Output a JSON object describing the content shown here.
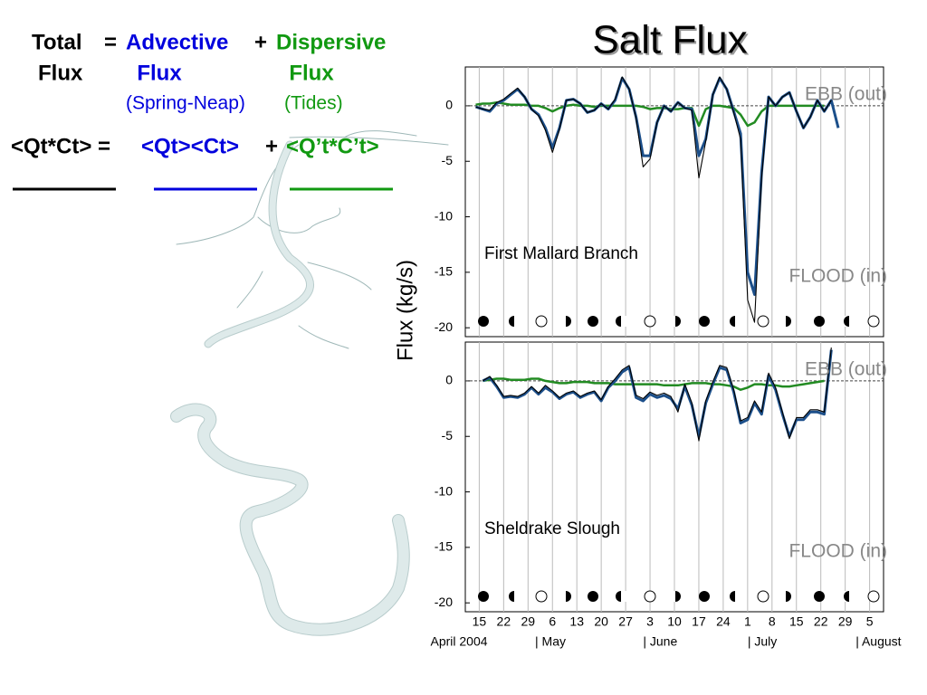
{
  "slide": {
    "title": "Salt Flux",
    "equation": {
      "lhs": {
        "line1": "Total",
        "line2": "Flux"
      },
      "equals": "=",
      "advective": {
        "line1": "Advective",
        "line2": "Flux",
        "note": "(Spring-Neap)"
      },
      "plus": "+",
      "dispersive": {
        "line1": "Dispersive",
        "line2": "Flux",
        "note": "(Tides)"
      },
      "averages": {
        "total": "<Qt*Ct> =",
        "advective": "<Qt><Ct>",
        "plus": "+",
        "dispersive": "<Q’t*C’t>"
      }
    }
  },
  "chart_data": [
    {
      "type": "line",
      "title": "First Mallard Branch",
      "ylabel": "Flux (kg/s)",
      "annotations": [
        "EBB (out)",
        "FLOOD (in)"
      ],
      "grid": true,
      "xlim": [
        "2004-04-11",
        "2004-08-09"
      ],
      "ylim": [
        -20.8,
        3.5
      ],
      "yticks": [
        0,
        -5,
        -10,
        -15,
        -20
      ],
      "x": [
        "2004-04-14",
        "2004-04-16",
        "2004-04-18",
        "2004-04-20",
        "2004-04-22",
        "2004-04-24",
        "2004-04-26",
        "2004-04-28",
        "2004-04-30",
        "2004-05-02",
        "2004-05-04",
        "2004-05-06",
        "2004-05-08",
        "2004-05-10",
        "2004-05-12",
        "2004-05-14",
        "2004-05-16",
        "2004-05-18",
        "2004-05-20",
        "2004-05-22",
        "2004-05-24",
        "2004-05-26",
        "2004-05-28",
        "2004-05-30",
        "2004-06-01",
        "2004-06-03",
        "2004-06-05",
        "2004-06-07",
        "2004-06-09",
        "2004-06-11",
        "2004-06-13",
        "2004-06-15",
        "2004-06-17",
        "2004-06-19",
        "2004-06-21",
        "2004-06-23",
        "2004-06-25",
        "2004-06-27",
        "2004-06-29",
        "2004-07-01",
        "2004-07-03",
        "2004-07-05",
        "2004-07-07",
        "2004-07-09",
        "2004-07-11",
        "2004-07-13",
        "2004-07-15",
        "2004-07-17",
        "2004-07-19",
        "2004-07-21",
        "2004-07-23",
        "2004-07-25",
        "2004-07-27"
      ],
      "series": [
        {
          "color": "#228b22",
          "values": [
            0.1,
            0.2,
            0.2,
            0.3,
            0.2,
            0.1,
            0.1,
            0.1,
            0,
            0,
            -0.2,
            -0.5,
            -0.2,
            0,
            0.1,
            0,
            0,
            -0.1,
            0,
            0,
            0,
            0,
            0,
            0,
            -0.1,
            -0.3,
            -0.2,
            -0.2,
            -0.3,
            -0.3,
            -0.2,
            -0.2,
            -1.8,
            -0.3,
            0,
            0,
            -0.1,
            -0.2,
            -0.8,
            -1.8,
            -1.5,
            -0.5,
            0,
            0,
            0,
            0,
            0,
            0,
            0,
            0,
            0,
            null,
            null
          ]
        },
        {
          "color": "#1c4f8a",
          "values": [
            -0.1,
            -0.3,
            -0.5,
            0.2,
            0.5,
            1.0,
            1.5,
            0.8,
            -0.3,
            -0.8,
            -2.0,
            -3.8,
            -2.0,
            0.5,
            0.6,
            0.2,
            -0.6,
            -0.4,
            0.2,
            -0.3,
            0.5,
            2.5,
            1.5,
            -1.0,
            -4.5,
            -4.5,
            -1.5,
            0.0,
            -0.5,
            0.3,
            -0.2,
            -0.3,
            -4.5,
            -3.0,
            1.0,
            2.5,
            1.5,
            -0.5,
            -2.5,
            -15.0,
            -17.0,
            -6.0,
            0.8,
            0.0,
            0.8,
            1.2,
            -0.5,
            -2.0,
            -1.0,
            0.5,
            -0.5,
            0.5,
            -2.0
          ]
        },
        {
          "color": "#000000",
          "values": [
            -0.1,
            -0.3,
            -0.4,
            0.3,
            0.6,
            1.1,
            1.6,
            0.8,
            -0.3,
            -0.9,
            -2.2,
            -4.2,
            -2.1,
            0.5,
            0.6,
            0.2,
            -0.6,
            -0.4,
            0.2,
            -0.3,
            0.6,
            2.6,
            1.5,
            -1.1,
            -5.5,
            -4.8,
            -1.5,
            0.0,
            -0.5,
            0.3,
            -0.2,
            -0.4,
            -6.5,
            -3.2,
            1.0,
            2.6,
            1.5,
            -0.6,
            -3.0,
            -17.5,
            -19.5,
            -6.5,
            0.8,
            0.0,
            0.8,
            1.2,
            -0.5,
            -2.0,
            -1.0,
            0.5,
            -0.5,
            0.5,
            null
          ]
        }
      ]
    },
    {
      "type": "line",
      "title": "Sheldrake Slough",
      "annotations": [
        "EBB (out)",
        "FLOOD (in)"
      ],
      "grid": true,
      "xlim": [
        "2004-04-11",
        "2004-08-09"
      ],
      "ylim": [
        -20.8,
        3.5
      ],
      "yticks": [
        0,
        -5,
        -10,
        -15,
        -20
      ],
      "xticks": [
        {
          "value": "2004-04-15",
          "label": "15"
        },
        {
          "value": "2004-04-22",
          "label": "22"
        },
        {
          "value": "2004-04-29",
          "label": "29"
        },
        {
          "value": "2004-05-06",
          "label": "6"
        },
        {
          "value": "2004-05-13",
          "label": "13"
        },
        {
          "value": "2004-05-20",
          "label": "20"
        },
        {
          "value": "2004-05-27",
          "label": "27"
        },
        {
          "value": "2004-06-03",
          "label": "3"
        },
        {
          "value": "2004-06-10",
          "label": "10"
        },
        {
          "value": "2004-06-17",
          "label": "17"
        },
        {
          "value": "2004-06-24",
          "label": "24"
        },
        {
          "value": "2004-07-01",
          "label": "1"
        },
        {
          "value": "2004-07-08",
          "label": "8"
        },
        {
          "value": "2004-07-15",
          "label": "15"
        },
        {
          "value": "2004-07-22",
          "label": "22"
        },
        {
          "value": "2004-07-29",
          "label": "29"
        },
        {
          "value": "2004-08-05",
          "label": "5"
        }
      ],
      "month_labels": [
        {
          "value": "2004-04-01",
          "label": "April 2004"
        },
        {
          "value": "2004-05-01",
          "label": "| May"
        },
        {
          "value": "2004-06-01",
          "label": "| June"
        },
        {
          "value": "2004-07-01",
          "label": "| July"
        },
        {
          "value": "2004-08-01",
          "label": "| August"
        }
      ],
      "x": [
        "2004-04-14",
        "2004-04-16",
        "2004-04-18",
        "2004-04-20",
        "2004-04-22",
        "2004-04-24",
        "2004-04-26",
        "2004-04-28",
        "2004-04-30",
        "2004-05-02",
        "2004-05-04",
        "2004-05-06",
        "2004-05-08",
        "2004-05-10",
        "2004-05-12",
        "2004-05-14",
        "2004-05-16",
        "2004-05-18",
        "2004-05-20",
        "2004-05-22",
        "2004-05-24",
        "2004-05-26",
        "2004-05-28",
        "2004-05-30",
        "2004-06-01",
        "2004-06-03",
        "2004-06-05",
        "2004-06-07",
        "2004-06-09",
        "2004-06-11",
        "2004-06-13",
        "2004-06-15",
        "2004-06-17",
        "2004-06-19",
        "2004-06-21",
        "2004-06-23",
        "2004-06-25",
        "2004-06-27",
        "2004-06-29",
        "2004-07-01",
        "2004-07-03",
        "2004-07-05",
        "2004-07-07",
        "2004-07-09",
        "2004-07-11",
        "2004-07-13",
        "2004-07-15",
        "2004-07-17",
        "2004-07-19",
        "2004-07-21",
        "2004-07-23",
        "2004-07-25",
        "2004-07-27"
      ],
      "series": [
        {
          "color": "#228b22",
          "values": [
            null,
            0,
            0.1,
            0.2,
            0.2,
            0.1,
            0.1,
            0.1,
            0.2,
            0.2,
            0,
            -0.1,
            -0.2,
            -0.2,
            -0.1,
            -0.1,
            -0.1,
            -0.2,
            -0.2,
            -0.2,
            -0.3,
            -0.3,
            -0.3,
            -0.3,
            -0.3,
            -0.3,
            -0.3,
            -0.4,
            -0.4,
            -0.4,
            -0.3,
            -0.2,
            -0.2,
            -0.2,
            -0.3,
            -0.3,
            -0.4,
            -0.5,
            -0.8,
            -0.6,
            -0.3,
            -0.3,
            -0.4,
            -0.4,
            -0.5,
            -0.5,
            -0.4,
            -0.3,
            -0.2,
            -0.1,
            0,
            null,
            null
          ]
        },
        {
          "color": "#1c4f8a",
          "values": [
            null,
            0.0,
            0.3,
            -0.5,
            -1.5,
            -1.4,
            -1.5,
            -1.2,
            -0.6,
            -1.2,
            -0.6,
            -1.0,
            -1.6,
            -1.2,
            -1.0,
            -1.5,
            -1.2,
            -1.0,
            -1.8,
            -0.6,
            0.0,
            0.8,
            1.2,
            -1.5,
            -1.8,
            -1.2,
            -1.5,
            -1.3,
            -1.6,
            -2.5,
            -0.5,
            -2.2,
            -5.0,
            -2.0,
            -0.3,
            1.2,
            1.0,
            -1.0,
            -3.8,
            -3.5,
            -2.0,
            -3.0,
            0.5,
            -0.8,
            -3.0,
            -5.0,
            -3.5,
            -3.5,
            -2.8,
            -2.8,
            -3.0,
            2.8,
            null
          ]
        },
        {
          "color": "#000000",
          "values": [
            null,
            0.0,
            0.4,
            -0.4,
            -1.4,
            -1.3,
            -1.4,
            -1.1,
            -0.5,
            -1.1,
            -0.4,
            -0.9,
            -1.5,
            -1.1,
            -0.9,
            -1.4,
            -1.1,
            -0.9,
            -1.7,
            -0.5,
            0.2,
            1.0,
            1.4,
            -1.3,
            -1.6,
            -1.0,
            -1.3,
            -1.1,
            -1.4,
            -2.8,
            -0.3,
            -2.0,
            -5.4,
            -1.8,
            -0.1,
            1.4,
            1.2,
            -0.8,
            -3.6,
            -3.3,
            -1.8,
            -2.8,
            0.7,
            -0.6,
            -2.8,
            -5.2,
            -3.3,
            -3.3,
            -2.6,
            -2.6,
            -2.8,
            3.0,
            null
          ]
        }
      ]
    }
  ]
}
